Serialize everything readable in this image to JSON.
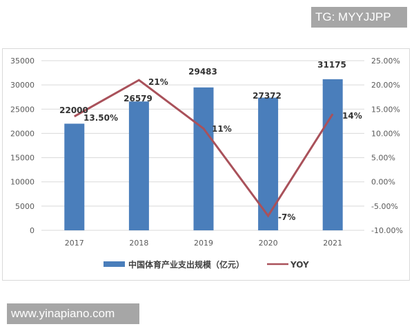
{
  "watermarks": {
    "top_right": "TG: MYYJJPP",
    "bottom_left": "www.yinapiano.com"
  },
  "colors": {
    "bar": "#4a7ebb",
    "line": "#a9515a",
    "grid": "#d9d9d9"
  },
  "chart_data": {
    "type": "bar",
    "title": "",
    "categories": [
      "2017",
      "2018",
      "2019",
      "2020",
      "2021"
    ],
    "series": [
      {
        "name": "中国体育产业支出规模（亿元）",
        "type": "bar",
        "axis": "left",
        "values": [
          22000,
          26579,
          29483,
          27372,
          31175
        ],
        "labels": [
          "22000",
          "26579",
          "29483",
          "27372",
          "31175"
        ]
      },
      {
        "name": "YOY",
        "type": "line",
        "axis": "right",
        "values": [
          13.5,
          21,
          11,
          -7,
          14
        ],
        "labels": [
          "13.50%",
          "21%",
          "11%",
          "-7%",
          "14%"
        ]
      }
    ],
    "left_axis": {
      "ylim": [
        0,
        35000
      ],
      "ticks": [
        "0",
        "5000",
        "10000",
        "15000",
        "20000",
        "25000",
        "30000",
        "35000"
      ]
    },
    "right_axis": {
      "ylim": [
        -10,
        25
      ],
      "ticks": [
        "-10.00%",
        "-5.00%",
        "0.00%",
        "5.00%",
        "10.00%",
        "15.00%",
        "20.00%",
        "25.00%"
      ]
    },
    "xlabel": "",
    "ylabel": "",
    "grid": true,
    "legend_position": "bottom",
    "legend": [
      "中国体育产业支出规模（亿元）",
      "YOY"
    ]
  }
}
